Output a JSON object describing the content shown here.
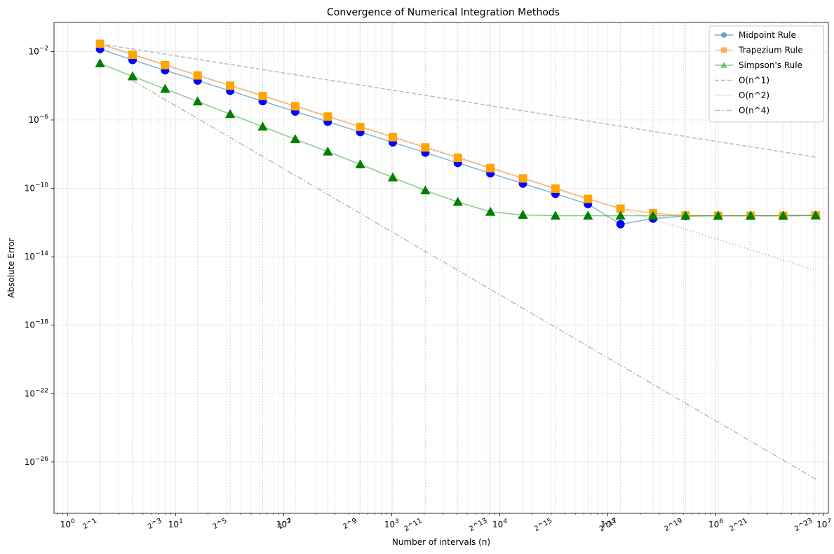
{
  "chart_data": {
    "type": "line",
    "title": "Convergence of Numerical Integration Methods",
    "xlabel": "Number of intervals (n)",
    "ylabel": "Absolute Error",
    "xscale": "log",
    "yscale": "log",
    "xlim": [
      0.75,
      11000000
    ],
    "ylim": [
      1e-29,
      0.5
    ],
    "grid": true,
    "legend_position": "top-right",
    "x_ticks": [
      {
        "value": 1,
        "base": "10",
        "exp": "0"
      },
      {
        "value": 10,
        "base": "10",
        "exp": "1"
      },
      {
        "value": 100,
        "base": "10",
        "exp": "2"
      },
      {
        "value": 1000,
        "base": "10",
        "exp": "3"
      },
      {
        "value": 10000,
        "base": "10",
        "exp": "4"
      },
      {
        "value": 100000,
        "base": "10",
        "exp": "5"
      },
      {
        "value": 1000000,
        "base": "10",
        "exp": "6"
      },
      {
        "value": 10000000,
        "base": "10",
        "exp": "7"
      }
    ],
    "y_ticks": [
      {
        "value": 0.01,
        "base": "10",
        "exp": "−2"
      },
      {
        "value": 1e-06,
        "base": "10",
        "exp": "−6"
      },
      {
        "value": 1e-10,
        "base": "10",
        "exp": "−10"
      },
      {
        "value": 1e-14,
        "base": "10",
        "exp": "−14"
      },
      {
        "value": 1e-18,
        "base": "10",
        "exp": "−18"
      },
      {
        "value": 1e-22,
        "base": "10",
        "exp": "−22"
      },
      {
        "value": 1e-26,
        "base": "10",
        "exp": "−26"
      }
    ],
    "power_labels": [
      "2^1",
      "2^3",
      "2^5",
      "2^7",
      "2^9",
      "2^11",
      "2^13",
      "2^15",
      "2^17",
      "2^19",
      "2^21",
      "2^23"
    ],
    "x": [
      2,
      4,
      8,
      16,
      32,
      64,
      128,
      256,
      512,
      1024,
      2048,
      4096,
      8192,
      16384,
      32768,
      65536,
      131072,
      262144,
      524288,
      1048576,
      2097152,
      4194304,
      8388608
    ],
    "series": [
      {
        "name": "Midpoint Rule",
        "marker": "circle",
        "line_color": "#1f77b4",
        "marker_color": "#0000ff",
        "values": [
          0.014,
          0.0032,
          0.0008,
          0.0002,
          5e-05,
          1.25e-05,
          3.1e-06,
          7.8e-07,
          1.95e-07,
          4.9e-08,
          1.22e-08,
          3.05e-09,
          7.6e-10,
          1.9e-10,
          4.8e-11,
          1.2e-11,
          8e-13,
          1.7e-12,
          2.4e-12,
          2.5e-12,
          2.5e-12,
          2.5e-12,
          2.6e-12
        ]
      },
      {
        "name": "Trapezium Rule",
        "marker": "square",
        "line_color": "#ff7f0e",
        "marker_color": "#ffa500",
        "values": [
          0.028,
          0.0065,
          0.0016,
          0.0004,
          0.0001,
          2.5e-05,
          6.3e-06,
          1.56e-06,
          3.9e-07,
          9.8e-08,
          2.45e-08,
          6.1e-09,
          1.52e-09,
          3.8e-10,
          9.6e-11,
          2.4e-11,
          6.5e-12,
          3.5e-12,
          2.6e-12,
          2.5e-12,
          2.5e-12,
          2.5e-12,
          2.6e-12
        ]
      },
      {
        "name": "Simpson's Rule",
        "marker": "triangle",
        "line_color": "#2ca02c",
        "marker_color": "#008000",
        "values": [
          0.002,
          0.00035,
          6.5e-05,
          1.2e-05,
          2.2e-06,
          4e-07,
          7.5e-08,
          1.4e-08,
          2.5e-09,
          4.3e-10,
          7.5e-11,
          1.6e-11,
          4.2e-12,
          2.8e-12,
          2.5e-12,
          2.5e-12,
          2.5e-12,
          2.5e-12,
          2.5e-12,
          2.5e-12,
          2.5e-12,
          2.5e-12,
          2.6e-12
        ]
      },
      {
        "name": "O(n^1)",
        "style": "dashed",
        "line_color": "#bbbbbb",
        "x": [
          2,
          8388608
        ],
        "values": [
          0.028,
          6.7e-09
        ]
      },
      {
        "name": "O(n^2)",
        "style": "dotted",
        "line_color": "#bbbbbb",
        "x": [
          2,
          8388608
        ],
        "values": [
          0.028,
          1.6e-15
        ]
      },
      {
        "name": "O(n^4)",
        "style": "dashdot",
        "line_color": "#bbbbbb",
        "x": [
          4,
          8388608
        ],
        "values": [
          0.0002,
          1e-27
        ]
      }
    ]
  }
}
